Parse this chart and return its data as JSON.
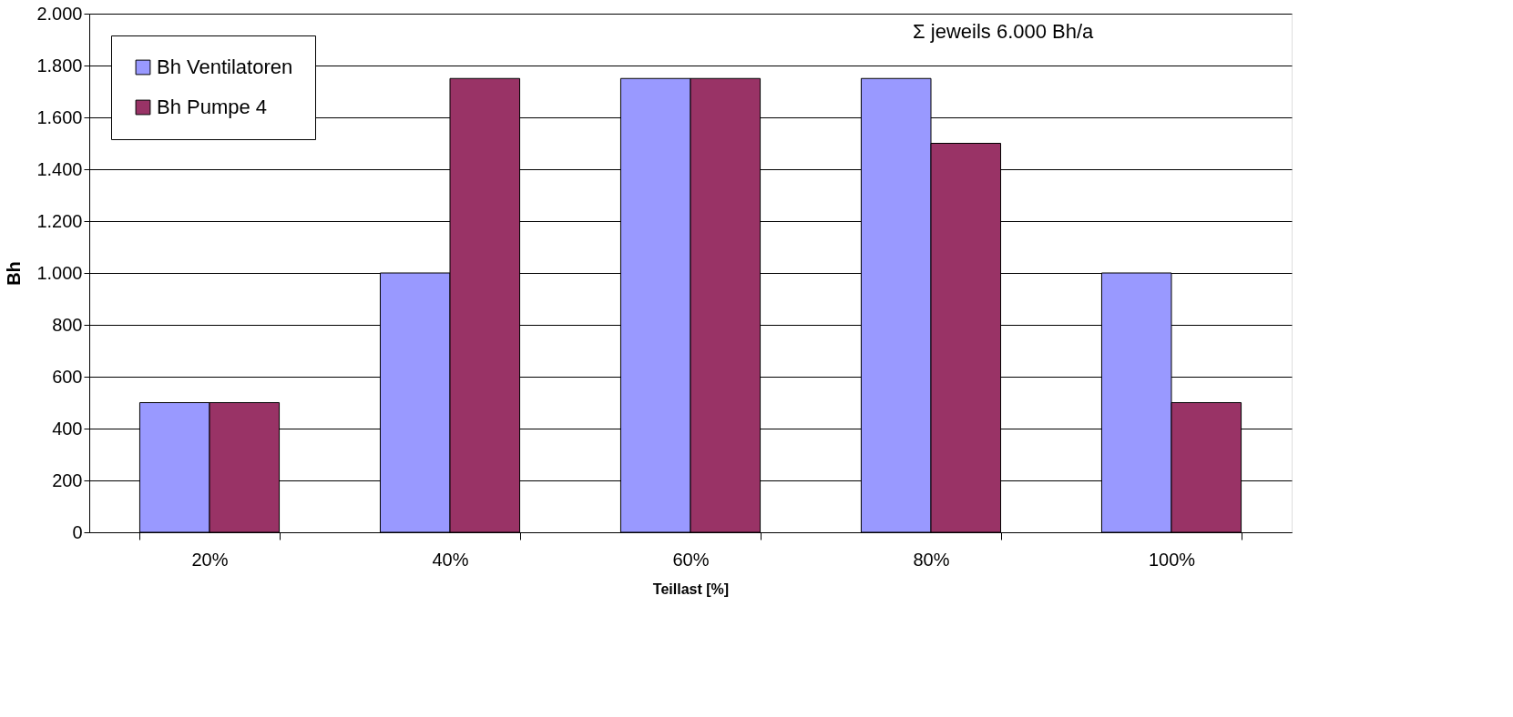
{
  "chart_data": {
    "type": "bar",
    "xlabel": "Teillast [%]",
    "ylabel": "Bh",
    "categories": [
      "20%",
      "40%",
      "60%",
      "80%",
      "100%"
    ],
    "series": [
      {
        "name": "Bh Ventilatoren",
        "color": "#9999ff",
        "values": [
          500,
          1000,
          1750,
          1750,
          1000
        ]
      },
      {
        "name": "Bh Pumpe 4",
        "color": "#993366",
        "values": [
          500,
          1750,
          1750,
          1500,
          500
        ]
      }
    ],
    "ylim": [
      0,
      2000
    ],
    "yticks": [
      0,
      200,
      400,
      600,
      800,
      {
        "value": 1000,
        "label": "1.000"
      },
      {
        "value": 1200,
        "label": "1.200"
      },
      {
        "value": 1400,
        "label": "1.400"
      },
      {
        "value": 1600,
        "label": "1.600"
      },
      {
        "value": 1800,
        "label": "1.800"
      },
      {
        "value": 2000,
        "label": "2.000"
      }
    ],
    "grid": "y",
    "legend": "top left",
    "annotations": [
      "Σ jeweils 6.000 Bh/a"
    ]
  }
}
